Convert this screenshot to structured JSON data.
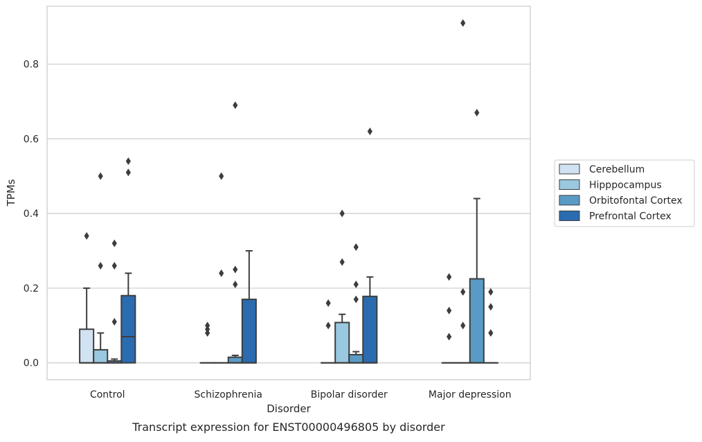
{
  "chart_data": {
    "type": "box",
    "title": "Transcript expression for ENST00000496805 by disorder",
    "xlabel": "Disorder",
    "ylabel": "TPMs",
    "ylim": [
      -0.045,
      0.955
    ],
    "yticks": [
      0.0,
      0.2,
      0.4,
      0.6,
      0.8
    ],
    "ytick_labels": [
      "0.0",
      "0.2",
      "0.4",
      "0.6",
      "0.8"
    ],
    "grid": "horizontal",
    "legend_position": "right",
    "categories": [
      "Control",
      "Schizophrenia",
      "Bipolar disorder",
      "Major depression"
    ],
    "series": [
      {
        "name": "Cerebellum",
        "color": "#d1e2f2",
        "boxes": [
          {
            "min": 0.0,
            "q1": 0.0,
            "median": 0.0,
            "q3": 0.09,
            "max": 0.2,
            "outliers": [
              0.34
            ]
          },
          {
            "min": 0.0,
            "q1": 0.0,
            "median": 0.0,
            "q3": 0.0,
            "max": 0.0,
            "outliers": [
              0.08,
              0.09,
              0.1
            ]
          },
          {
            "min": 0.0,
            "q1": 0.0,
            "median": 0.0,
            "q3": 0.0,
            "max": 0.0,
            "outliers": [
              0.1,
              0.16
            ]
          },
          {
            "min": 0.0,
            "q1": 0.0,
            "median": 0.0,
            "q3": 0.0,
            "max": 0.0,
            "outliers": [
              0.07,
              0.14,
              0.23
            ]
          }
        ]
      },
      {
        "name": "Hipppocampus",
        "color": "#9ac8e0",
        "boxes": [
          {
            "min": 0.0,
            "q1": 0.0,
            "median": 0.0,
            "q3": 0.035,
            "max": 0.08,
            "outliers": [
              0.26,
              0.5
            ]
          },
          {
            "min": 0.0,
            "q1": 0.0,
            "median": 0.0,
            "q3": 0.0,
            "max": 0.0,
            "outliers": [
              0.24,
              0.5
            ]
          },
          {
            "min": 0.0,
            "q1": 0.0,
            "median": 0.0,
            "q3": 0.108,
            "max": 0.13,
            "outliers": [
              0.27,
              0.4
            ]
          },
          {
            "min": 0.0,
            "q1": 0.0,
            "median": 0.0,
            "q3": 0.0,
            "max": 0.0,
            "outliers": [
              0.1,
              0.19,
              0.91
            ]
          }
        ]
      },
      {
        "name": "Orbitofontal Cortex",
        "color": "#5a9bc6",
        "boxes": [
          {
            "min": 0.0,
            "q1": 0.0,
            "median": 0.0,
            "q3": 0.005,
            "max": 0.01,
            "outliers": [
              0.11,
              0.26,
              0.32
            ]
          },
          {
            "min": 0.0,
            "q1": 0.0,
            "median": 0.0,
            "q3": 0.015,
            "max": 0.02,
            "outliers": [
              0.21,
              0.25,
              0.69
            ]
          },
          {
            "min": 0.0,
            "q1": 0.0,
            "median": 0.0,
            "q3": 0.022,
            "max": 0.03,
            "outliers": [
              0.17,
              0.21,
              0.31
            ]
          },
          {
            "min": 0.0,
            "q1": 0.0,
            "median": 0.0,
            "q3": 0.225,
            "max": 0.44,
            "outliers": [
              0.67
            ]
          }
        ]
      },
      {
        "name": "Prefrontal Cortex",
        "color": "#2b6cb0",
        "boxes": [
          {
            "min": 0.0,
            "q1": 0.0,
            "median": 0.07,
            "q3": 0.18,
            "max": 0.24,
            "outliers": [
              0.51,
              0.54
            ]
          },
          {
            "min": 0.0,
            "q1": 0.0,
            "median": 0.0,
            "q3": 0.17,
            "max": 0.3,
            "outliers": []
          },
          {
            "min": 0.0,
            "q1": 0.0,
            "median": 0.0,
            "q3": 0.178,
            "max": 0.23,
            "outliers": [
              0.62
            ]
          },
          {
            "min": 0.0,
            "q1": 0.0,
            "median": 0.0,
            "q3": 0.0,
            "max": 0.0,
            "outliers": [
              0.08,
              0.15,
              0.19
            ]
          }
        ]
      }
    ]
  }
}
